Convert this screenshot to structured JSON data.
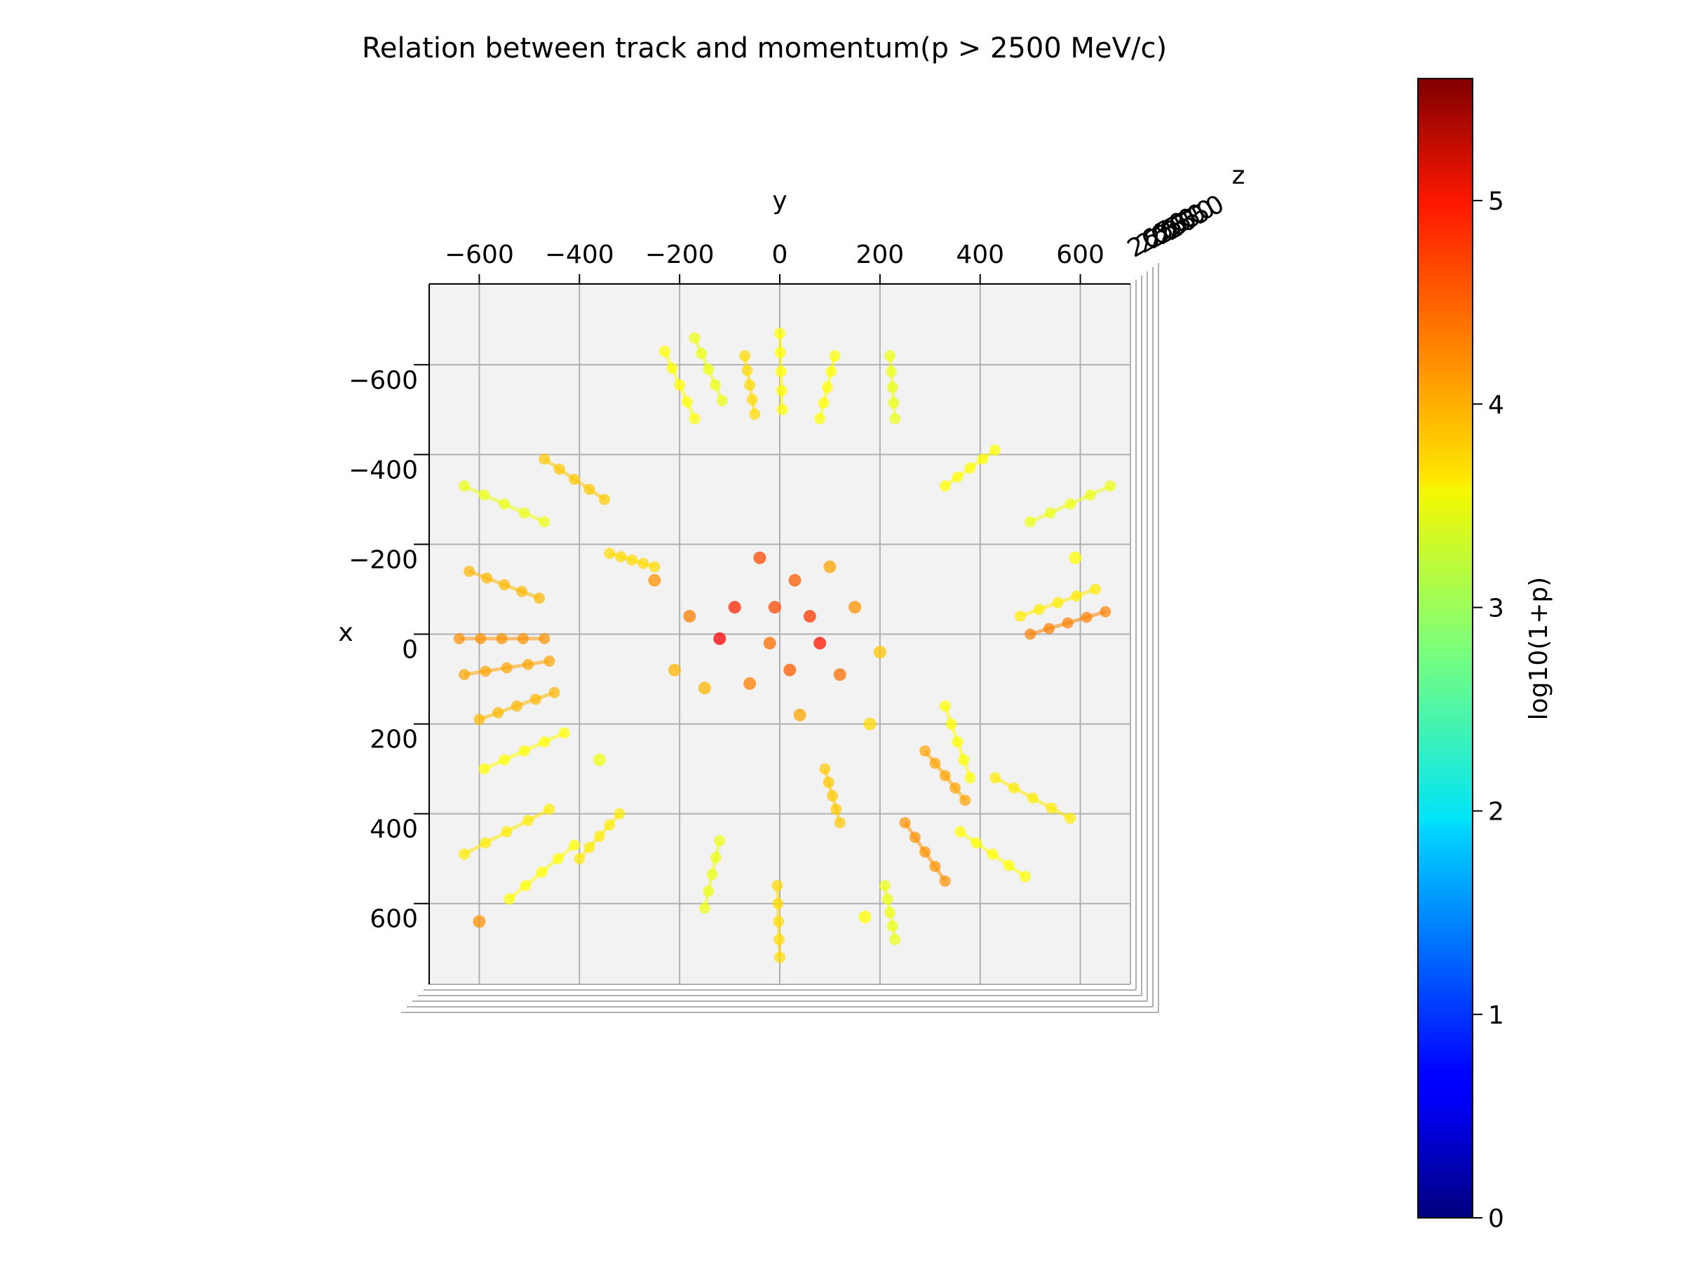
{
  "chart_data": {
    "type": "scatter",
    "title": "Relation between track and momentum(p > 2500 MeV/c)",
    "xlabel": "y",
    "ylabel": "x",
    "zlabel": "z",
    "view": "3d-top-down",
    "xlim": [
      -700,
      700
    ],
    "ylim": [
      -780,
      780
    ],
    "x_ticks": [
      "−600",
      "−400",
      "−200",
      "0",
      "200",
      "400",
      "600"
    ],
    "x_tick_values": [
      -600,
      -400,
      -200,
      0,
      200,
      400,
      600
    ],
    "y_ticks": [
      "−600",
      "−400",
      "−200",
      "0",
      "200",
      "400",
      "600"
    ],
    "y_tick_values": [
      -600,
      -400,
      -200,
      0,
      200,
      400,
      600
    ],
    "z_tick_labels_overlapping": "2650",
    "grid": true,
    "colorbar": {
      "label": "log10(1+p)",
      "colormap": "jet",
      "range": [
        0,
        5.6
      ],
      "ticks": [
        "0",
        "1",
        "2",
        "3",
        "4",
        "5"
      ],
      "tick_values": [
        0,
        1,
        2,
        3,
        4,
        5
      ]
    },
    "tracks_note_color_range": [
      3.3,
      5.0
    ],
    "tracks": [
      {
        "from": [
          -230,
          -630
        ],
        "to": [
          -170,
          -480
        ],
        "c": 3.5
      },
      {
        "from": [
          -170,
          -660
        ],
        "to": [
          -115,
          -520
        ],
        "c": 3.4
      },
      {
        "from": [
          -70,
          -620
        ],
        "to": [
          -50,
          -490
        ],
        "c": 3.7
      },
      {
        "from": [
          0,
          -670
        ],
        "to": [
          5,
          -500
        ],
        "c": 3.5
      },
      {
        "from": [
          110,
          -620
        ],
        "to": [
          80,
          -480
        ],
        "c": 3.5
      },
      {
        "from": [
          220,
          -620
        ],
        "to": [
          230,
          -480
        ],
        "c": 3.4
      },
      {
        "from": [
          -630,
          -330
        ],
        "to": [
          -470,
          -250
        ],
        "c": 3.4
      },
      {
        "from": [
          -470,
          -390
        ],
        "to": [
          -350,
          -300
        ],
        "c": 3.8
      },
      {
        "from": [
          -620,
          -140
        ],
        "to": [
          -480,
          -80
        ],
        "c": 3.9
      },
      {
        "from": [
          -640,
          10
        ],
        "to": [
          -470,
          10
        ],
        "c": 4.1
      },
      {
        "from": [
          -630,
          90
        ],
        "to": [
          -460,
          60
        ],
        "c": 4.0
      },
      {
        "from": [
          -600,
          190
        ],
        "to": [
          -450,
          130
        ],
        "c": 3.9
      },
      {
        "from": [
          -590,
          300
        ],
        "to": [
          -430,
          220
        ],
        "c": 3.5
      },
      {
        "from": [
          -630,
          490
        ],
        "to": [
          -460,
          390
        ],
        "c": 3.6
      },
      {
        "from": [
          -540,
          590
        ],
        "to": [
          -410,
          470
        ],
        "c": 3.5
      },
      {
        "from": [
          -150,
          610
        ],
        "to": [
          -120,
          460
        ],
        "c": 3.4
      },
      {
        "from": [
          0,
          720
        ],
        "to": [
          -5,
          560
        ],
        "c": 3.7
      },
      {
        "from": [
          230,
          680
        ],
        "to": [
          210,
          560
        ],
        "c": 3.4
      },
      {
        "from": [
          330,
          550
        ],
        "to": [
          250,
          420
        ],
        "c": 4.1
      },
      {
        "from": [
          490,
          540
        ],
        "to": [
          360,
          440
        ],
        "c": 3.5
      },
      {
        "from": [
          580,
          410
        ],
        "to": [
          430,
          320
        ],
        "c": 3.6
      },
      {
        "from": [
          370,
          370
        ],
        "to": [
          290,
          260
        ],
        "c": 4.0
      },
      {
        "from": [
          660,
          -330
        ],
        "to": [
          500,
          -250
        ],
        "c": 3.4
      },
      {
        "from": [
          630,
          -100
        ],
        "to": [
          480,
          -40
        ],
        "c": 3.6
      },
      {
        "from": [
          650,
          -50
        ],
        "to": [
          500,
          0
        ],
        "c": 4.2
      },
      {
        "from": [
          430,
          -410
        ],
        "to": [
          330,
          -330
        ],
        "c": 3.5
      },
      {
        "from": [
          380,
          320
        ],
        "to": [
          330,
          160
        ],
        "c": 3.5
      },
      {
        "from": [
          120,
          420
        ],
        "to": [
          90,
          300
        ],
        "c": 3.8
      },
      {
        "from": [
          -400,
          500
        ],
        "to": [
          -320,
          400
        ],
        "c": 3.6
      },
      {
        "from": [
          -340,
          -180
        ],
        "to": [
          -250,
          -150
        ],
        "c": 3.7
      }
    ],
    "points": [
      {
        "x": -40,
        "y": -170,
        "c": 4.5
      },
      {
        "x": 30,
        "y": -120,
        "c": 4.4
      },
      {
        "x": -90,
        "y": -60,
        "c": 4.7
      },
      {
        "x": 60,
        "y": -40,
        "c": 4.6
      },
      {
        "x": -20,
        "y": 20,
        "c": 4.3
      },
      {
        "x": 80,
        "y": 20,
        "c": 4.8
      },
      {
        "x": -120,
        "y": 10,
        "c": 4.9
      },
      {
        "x": 20,
        "y": 80,
        "c": 4.4
      },
      {
        "x": -60,
        "y": 110,
        "c": 4.2
      },
      {
        "x": 120,
        "y": 90,
        "c": 4.3
      },
      {
        "x": 150,
        "y": -60,
        "c": 4.1
      },
      {
        "x": -180,
        "y": -40,
        "c": 4.2
      },
      {
        "x": 40,
        "y": 180,
        "c": 4.0
      },
      {
        "x": -10,
        "y": -60,
        "c": 4.5
      },
      {
        "x": 100,
        "y": -150,
        "c": 4.0
      },
      {
        "x": -150,
        "y": 120,
        "c": 3.9
      },
      {
        "x": 200,
        "y": 40,
        "c": 3.8
      },
      {
        "x": -210,
        "y": 80,
        "c": 3.9
      },
      {
        "x": -250,
        "y": -120,
        "c": 4.1
      },
      {
        "x": 180,
        "y": 200,
        "c": 3.7
      },
      {
        "x": -360,
        "y": 280,
        "c": 3.4
      },
      {
        "x": -600,
        "y": 640,
        "c": 4.1
      },
      {
        "x": 170,
        "y": 630,
        "c": 3.5
      },
      {
        "x": 590,
        "y": -170,
        "c": 3.5
      }
    ]
  }
}
